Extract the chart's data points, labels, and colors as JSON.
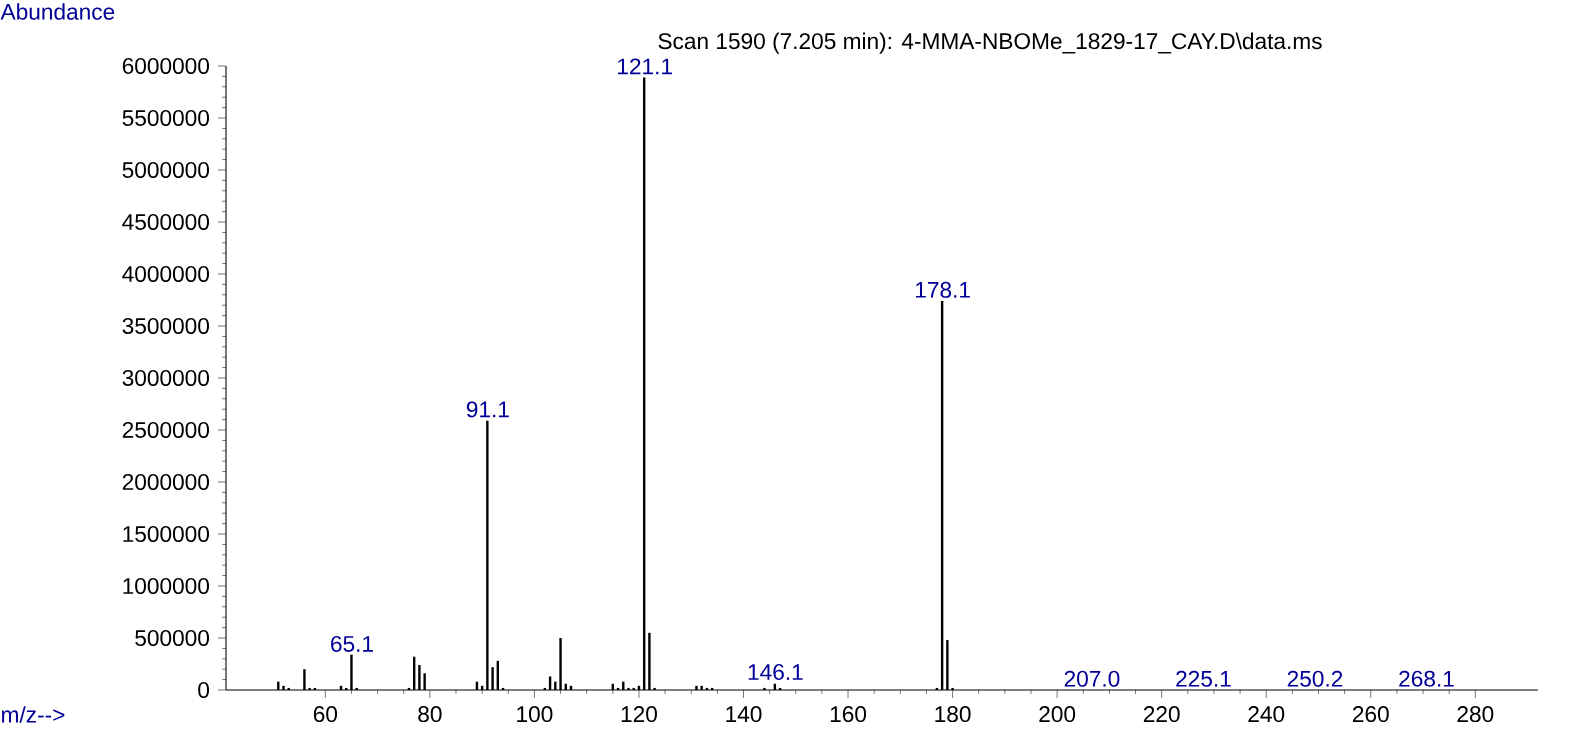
{
  "chart_data": {
    "type": "bar",
    "title": "Scan 1590 (7.205 min): 4-MMA-NBOMe_1829-17_CAY.D\\data.ms",
    "xlabel": "m/z-->",
    "ylabel": "Abundance",
    "x": [
      51,
      52,
      53,
      56,
      57,
      58,
      63,
      64,
      65,
      66,
      76,
      77,
      78,
      79,
      89,
      90,
      91,
      92,
      93,
      94,
      102,
      103,
      104,
      105,
      106,
      107,
      115,
      116,
      117,
      118,
      119,
      120,
      121,
      122,
      123,
      131,
      132,
      133,
      134,
      144,
      146,
      147,
      177,
      178,
      179,
      180
    ],
    "values": [
      80000,
      40000,
      20000,
      200000,
      20000,
      20000,
      40000,
      20000,
      340000,
      20000,
      20000,
      320000,
      240000,
      160000,
      80000,
      40000,
      2590000,
      220000,
      280000,
      20000,
      20000,
      130000,
      80000,
      500000,
      60000,
      40000,
      60000,
      20000,
      80000,
      20000,
      20000,
      40000,
      5890000,
      550000,
      20000,
      40000,
      40000,
      20000,
      20000,
      20000,
      60000,
      20000,
      20000,
      3740000,
      480000,
      20000
    ],
    "color": "#000000",
    "xlim": [
      41,
      292
    ],
    "ylim": [
      0,
      6000000
    ],
    "xticks": [
      60,
      80,
      100,
      120,
      140,
      160,
      180,
      200,
      220,
      240,
      260,
      280
    ],
    "yticks": [
      0,
      500000,
      1000000,
      1500000,
      2000000,
      2500000,
      3000000,
      3500000,
      4000000,
      4500000,
      5000000,
      5500000,
      6000000
    ],
    "annotations": [
      {
        "text": "65.1",
        "x": 65.1,
        "y": 335000
      },
      {
        "text": "91.1",
        "x": 91.1,
        "y": 2590000
      },
      {
        "text": "121.1",
        "x": 121.1,
        "y": 5890000
      },
      {
        "text": "146.1",
        "x": 146.1,
        "y": 65000
      },
      {
        "text": "178.1",
        "x": 178.1,
        "y": 3740000
      },
      "207.0",
      "225.1",
      "250.2",
      "268.1"
    ]
  }
}
